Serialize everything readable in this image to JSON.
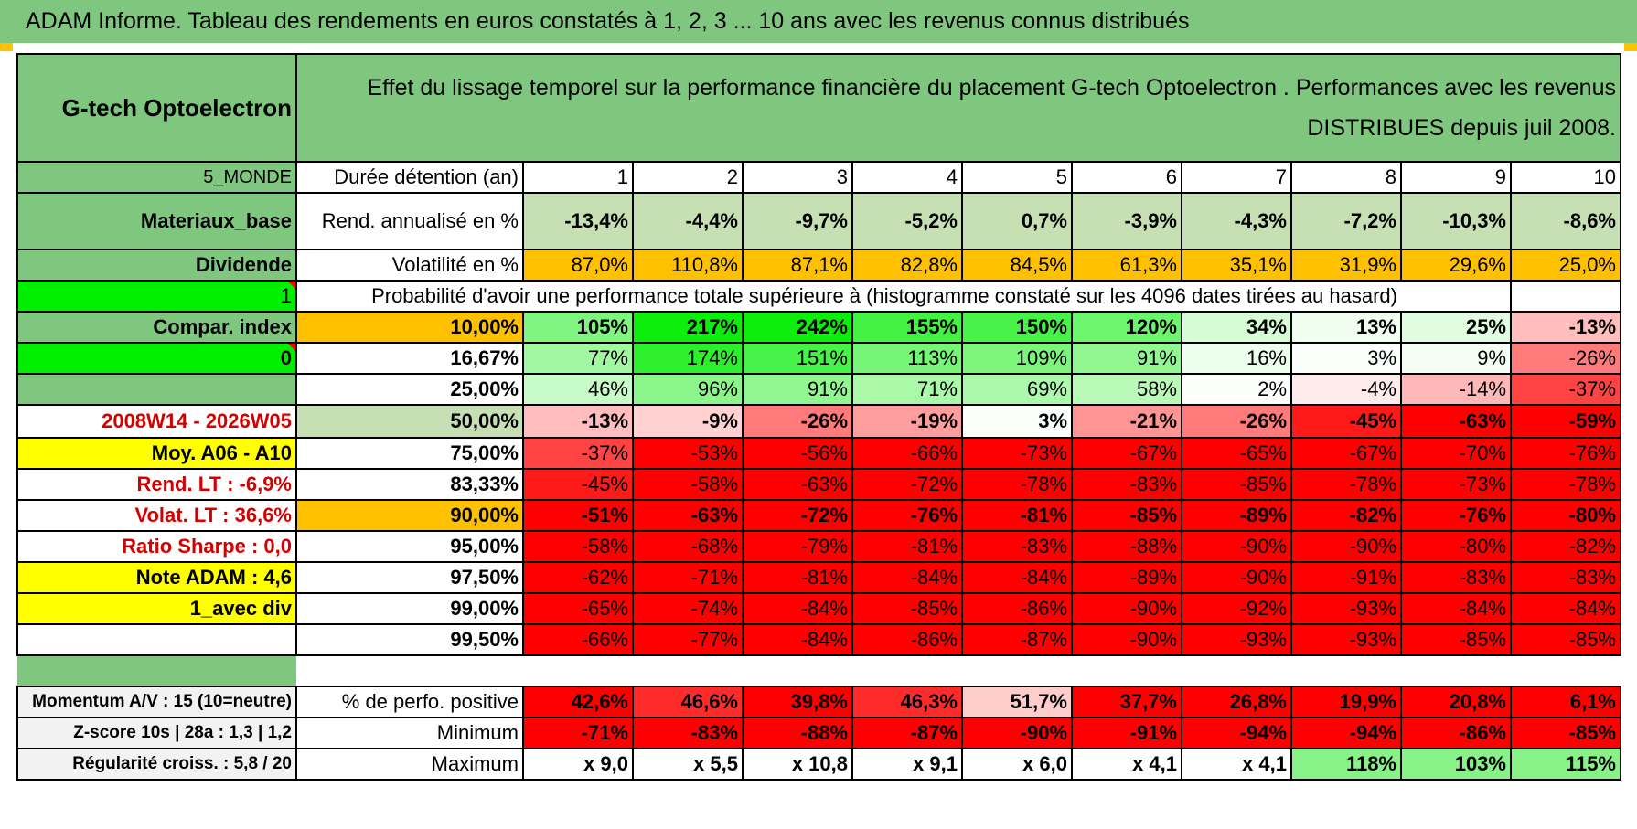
{
  "title": "ADAM Informe. Tableau des rendements en euros constatés à 1, 2, 3 ... 10 ans avec les revenus connus distribués",
  "fund_name": "G-tech Optoelectron",
  "description": "Effet du lissage temporel sur la performance financière du placement G-tech Optoelectron . Performances avec les revenus DISTRIBUES depuis juil 2008.",
  "left": {
    "zone": "5_MONDE",
    "sector": "Materiaux_base",
    "dividend": "Dividende",
    "flag1": "1",
    "compar": "Compar. index",
    "flag0": "0",
    "period": "2008W14 - 2026W05",
    "moy": "Moy. A06 - A10",
    "rend_lt": "Rend. LT :    -6,9%",
    "volat_lt": "Volat. LT :   36,6%",
    "sharpe": "Ratio Sharpe :    0,0",
    "note": "Note ADAM : 4,6",
    "avec_div": "1_avec div",
    "momentum": "Momentum A/V : 15 (10=neutre)",
    "zscore": "Z-score 10s | 28a : 1,3 | 1,2",
    "regularite": "Régularité croiss. : 5,8 / 20"
  },
  "labels": {
    "duree": "Durée détention (an)",
    "rend": "Rend. annualisé en %",
    "vol": "Volatilité en %",
    "proba": "Probabilité d'avoir une performance totale supérieure à (histogramme constaté sur les 4096 dates tirées au hasard)",
    "perf_pos": "% de perfo. positive",
    "minimum": "Minimum",
    "maximum": "Maximum"
  },
  "years": [
    "1",
    "2",
    "3",
    "4",
    "5",
    "6",
    "7",
    "8",
    "9",
    "10"
  ],
  "rend": [
    "-13,4%",
    "-4,4%",
    "-9,7%",
    "-5,2%",
    "0,7%",
    "-3,9%",
    "-4,3%",
    "-7,2%",
    "-10,3%",
    "-8,6%"
  ],
  "vol": [
    "87,0%",
    "110,8%",
    "87,1%",
    "82,8%",
    "84,5%",
    "61,3%",
    "35,1%",
    "31,9%",
    "29,6%",
    "25,0%"
  ],
  "proba_rows": [
    {
      "pct": "10,00%",
      "vals": [
        "105%",
        "217%",
        "242%",
        "155%",
        "150%",
        "120%",
        "34%",
        "13%",
        "25%",
        "-13%"
      ]
    },
    {
      "pct": "16,67%",
      "vals": [
        "77%",
        "174%",
        "151%",
        "113%",
        "109%",
        "91%",
        "16%",
        "3%",
        "9%",
        "-26%"
      ]
    },
    {
      "pct": "25,00%",
      "vals": [
        "46%",
        "96%",
        "91%",
        "71%",
        "69%",
        "58%",
        "2%",
        "-4%",
        "-14%",
        "-37%"
      ]
    },
    {
      "pct": "50,00%",
      "vals": [
        "-13%",
        "-9%",
        "-26%",
        "-19%",
        "3%",
        "-21%",
        "-26%",
        "-45%",
        "-63%",
        "-59%"
      ]
    },
    {
      "pct": "75,00%",
      "vals": [
        "-37%",
        "-53%",
        "-56%",
        "-66%",
        "-73%",
        "-67%",
        "-65%",
        "-67%",
        "-70%",
        "-76%"
      ]
    },
    {
      "pct": "83,33%",
      "vals": [
        "-45%",
        "-58%",
        "-63%",
        "-72%",
        "-78%",
        "-83%",
        "-85%",
        "-78%",
        "-73%",
        "-78%"
      ]
    },
    {
      "pct": "90,00%",
      "vals": [
        "-51%",
        "-63%",
        "-72%",
        "-76%",
        "-81%",
        "-85%",
        "-89%",
        "-82%",
        "-76%",
        "-80%"
      ]
    },
    {
      "pct": "95,00%",
      "vals": [
        "-58%",
        "-68%",
        "-79%",
        "-81%",
        "-83%",
        "-88%",
        "-90%",
        "-90%",
        "-80%",
        "-82%"
      ]
    },
    {
      "pct": "97,50%",
      "vals": [
        "-62%",
        "-71%",
        "-81%",
        "-84%",
        "-84%",
        "-89%",
        "-90%",
        "-91%",
        "-83%",
        "-83%"
      ]
    },
    {
      "pct": "99,00%",
      "vals": [
        "-65%",
        "-74%",
        "-84%",
        "-85%",
        "-86%",
        "-90%",
        "-92%",
        "-93%",
        "-84%",
        "-84%"
      ]
    },
    {
      "pct": "99,50%",
      "vals": [
        "-66%",
        "-77%",
        "-84%",
        "-86%",
        "-87%",
        "-90%",
        "-93%",
        "-93%",
        "-85%",
        "-85%"
      ]
    }
  ],
  "perf_pos": [
    "42,6%",
    "46,6%",
    "39,8%",
    "46,3%",
    "51,7%",
    "37,7%",
    "26,8%",
    "19,9%",
    "20,8%",
    "6,1%"
  ],
  "minimum": [
    "-71%",
    "-83%",
    "-88%",
    "-87%",
    "-90%",
    "-91%",
    "-94%",
    "-94%",
    "-86%",
    "-85%"
  ],
  "maximum": [
    "x 9,0",
    "x 5,5",
    "x 10,8",
    "x 9,1",
    "x 6,0",
    "x 4,1",
    "x 4,1",
    "118%",
    "103%",
    "115%"
  ],
  "colors": {
    "header_green": "#7fc77f",
    "bright_green": "#00ee00",
    "orange": "#ffc000",
    "yellow": "#ffff00",
    "red": "#ff0000",
    "rend_green": "#c6e0b4"
  }
}
